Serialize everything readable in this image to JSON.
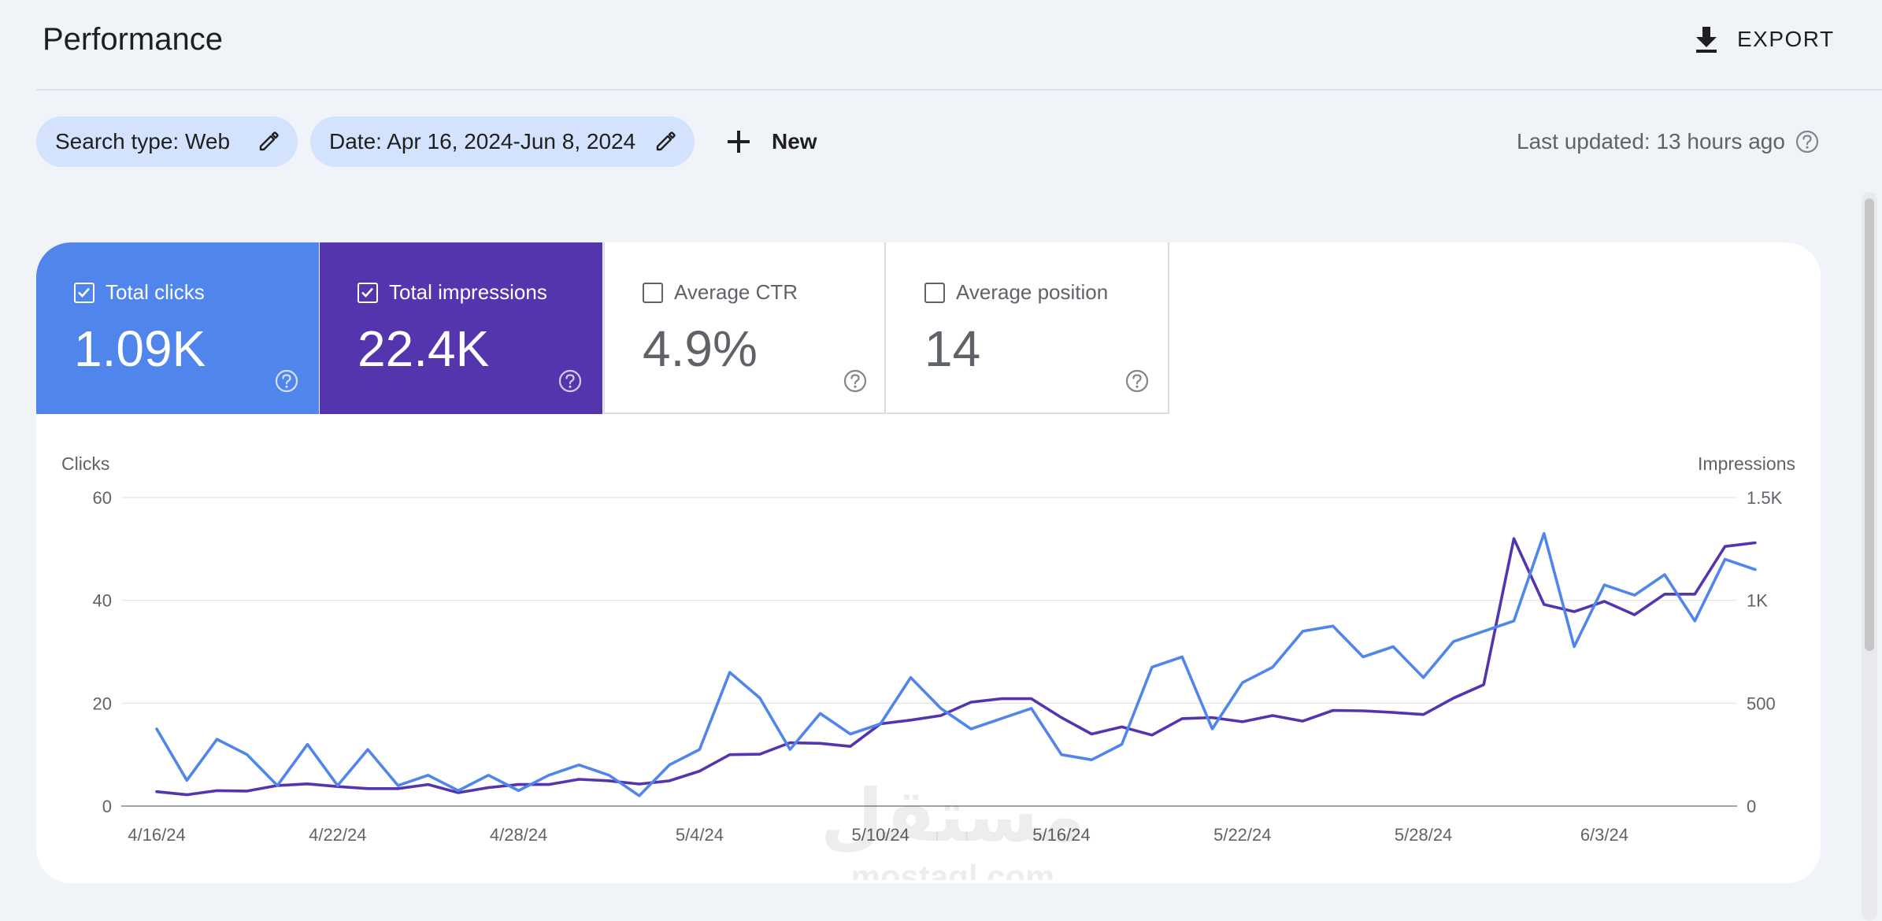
{
  "header": {
    "title": "Performance",
    "export_label": "EXPORT"
  },
  "filters": {
    "search_type": "Search type: Web",
    "date": "Date: Apr 16, 2024-Jun 8, 2024",
    "new_label": "New",
    "last_updated": "Last updated: 13 hours ago"
  },
  "metrics": [
    {
      "label": "Total clicks",
      "value": "1.09K",
      "checked": true,
      "color": "#5086ec"
    },
    {
      "label": "Total impressions",
      "value": "22.4K",
      "checked": true,
      "color": "#5435ad"
    },
    {
      "label": "Average CTR",
      "value": "4.9%",
      "checked": false
    },
    {
      "label": "Average position",
      "value": "14",
      "checked": false
    }
  ],
  "watermark": {
    "arabic": "مستقل",
    "latin": "mostaql.com"
  },
  "chart_data": {
    "type": "line",
    "left_axis_label": "Clicks",
    "right_axis_label": "Impressions",
    "left_ylim": [
      0,
      60
    ],
    "left_ticks": [
      "0",
      "20",
      "40",
      "60"
    ],
    "right_ylim": [
      0,
      1500
    ],
    "right_ticks": [
      "0",
      "500",
      "1K",
      "1.5K"
    ],
    "grid": true,
    "x_start": "2024-04-16",
    "x_end": "2024-06-08",
    "x_ticks": [
      "4/16/24",
      "4/22/24",
      "4/28/24",
      "5/4/24",
      "5/10/24",
      "5/16/24",
      "5/22/24",
      "5/28/24",
      "6/3/24"
    ],
    "series": [
      {
        "name": "Clicks",
        "axis": "left",
        "color": "#5086ec",
        "values": [
          15,
          5,
          13,
          10,
          4,
          12,
          4,
          11,
          4,
          6,
          3,
          6,
          3,
          6,
          8,
          6,
          2,
          8,
          11,
          26,
          21,
          11,
          18,
          14,
          16,
          25,
          19,
          15,
          17,
          19,
          10,
          9,
          12,
          27,
          29,
          15,
          24,
          27,
          34,
          35,
          29,
          31,
          25,
          32,
          34,
          36,
          53,
          31,
          43,
          41,
          45,
          36,
          48,
          46
        ]
      },
      {
        "name": "Impressions",
        "axis": "right",
        "color": "#5435ad",
        "values": [
          70,
          55,
          75,
          73,
          100,
          108,
          95,
          85,
          85,
          105,
          65,
          90,
          105,
          105,
          130,
          123,
          107,
          123,
          170,
          250,
          252,
          308,
          305,
          290,
          400,
          418,
          440,
          505,
          522,
          522,
          430,
          350,
          385,
          345,
          425,
          430,
          410,
          440,
          413,
          465,
          463,
          455,
          445,
          525,
          590,
          1300,
          980,
          945,
          995,
          930,
          1030,
          1030,
          1262,
          1280
        ]
      }
    ]
  }
}
